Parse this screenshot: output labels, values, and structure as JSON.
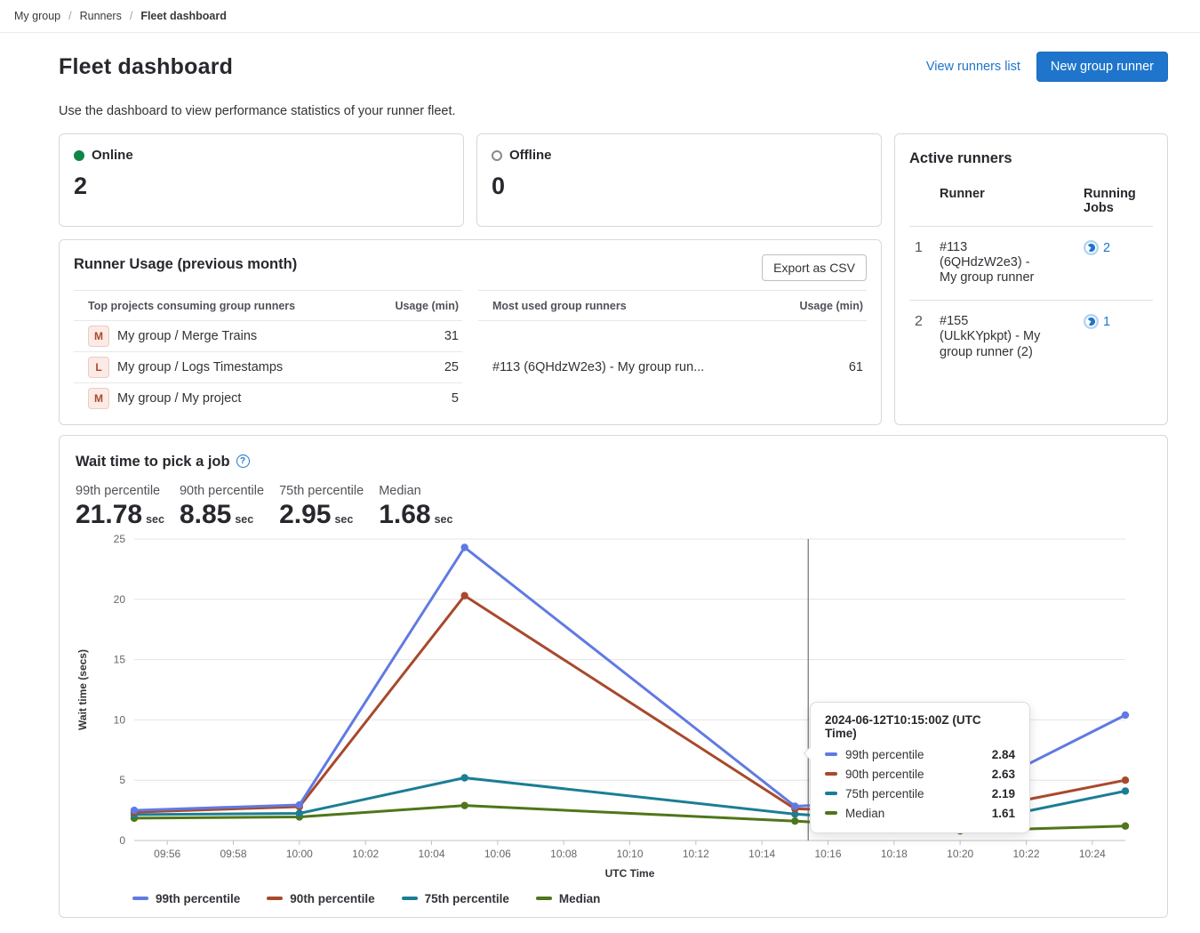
{
  "colors": {
    "link": "#1f75cb",
    "primary_button": "#1f75cb",
    "online": "#108548",
    "offline_ring": "#89888d",
    "grid_line": "#e4e4e7",
    "axis_line": "#c2c1c6",
    "axis_pointer": "#55545a"
  },
  "breadcrumb": {
    "items": [
      {
        "label": "My group"
      },
      {
        "label": "Runners"
      },
      {
        "label": "Fleet dashboard"
      }
    ]
  },
  "header": {
    "title": "Fleet dashboard",
    "view_runners_link": "View runners list",
    "new_runner_button": "New group runner",
    "subtitle": "Use the dashboard to view performance statistics of your runner fleet."
  },
  "status_cards": {
    "online": {
      "label": "Online",
      "value": "2"
    },
    "offline": {
      "label": "Offline",
      "value": "0"
    }
  },
  "active_runners": {
    "title": "Active runners",
    "columns": {
      "runner": "Runner",
      "jobs": "Running Jobs"
    },
    "rows": [
      {
        "index": "1",
        "name": "#113 (6QHdzW2e3) - My group runner",
        "jobs": "2"
      },
      {
        "index": "2",
        "name": "#155 (ULkKYpkpt) - My group runner (2)",
        "jobs": "1"
      }
    ]
  },
  "runner_usage": {
    "title": "Runner Usage (previous month)",
    "export_button": "Export as CSV",
    "top_projects": {
      "col_name": "Top projects consuming group runners",
      "col_usage": "Usage (min)",
      "rows": [
        {
          "avatar": "M",
          "name": "My group / Merge Trains",
          "usage": "31"
        },
        {
          "avatar": "L",
          "name": "My group / Logs Timestamps",
          "usage": "25"
        },
        {
          "avatar": "M",
          "name": "My group / My project",
          "usage": "5"
        }
      ]
    },
    "most_used": {
      "col_name": "Most used group runners",
      "col_usage": "Usage (min)",
      "rows": [
        {
          "name": "#113 (6QHdzW2e3) - My group run...",
          "usage": "61"
        }
      ]
    }
  },
  "wait_chart": {
    "title": "Wait time to pick a job",
    "stats": [
      {
        "label": "99th percentile",
        "value": "21.78",
        "unit": "sec"
      },
      {
        "label": "90th percentile",
        "value": "8.85",
        "unit": "sec"
      },
      {
        "label": "75th percentile",
        "value": "2.95",
        "unit": "sec"
      },
      {
        "label": "Median",
        "value": "1.68",
        "unit": "sec"
      }
    ],
    "chart_data": {
      "type": "line",
      "title": "Wait time to pick a job",
      "xlabel": "UTC Time",
      "ylabel": "Wait time (secs)",
      "ylim": [
        0,
        25
      ],
      "y_ticks": [
        0,
        5,
        10,
        15,
        20,
        25
      ],
      "x_times": [
        "09:55",
        "10:00",
        "10:05",
        "10:15",
        "10:20",
        "10:25"
      ],
      "x_minutes": [
        0,
        5,
        10,
        20,
        25,
        30
      ],
      "x_range_minutes": 30,
      "x_tick_labels": [
        "09:56",
        "09:58",
        "10:00",
        "10:02",
        "10:04",
        "10:06",
        "10:08",
        "10:10",
        "10:12",
        "10:14",
        "10:16",
        "10:18",
        "10:20",
        "10:22",
        "10:24"
      ],
      "grid": "horizontal",
      "legend_position": "bottom",
      "series": [
        {
          "name": "99th percentile",
          "color": "#617ae2",
          "values": [
            2.5,
            2.95,
            24.3,
            2.84,
            3.5,
            10.4
          ]
        },
        {
          "name": "90th percentile",
          "color": "#a8492c",
          "values": [
            2.35,
            2.8,
            20.3,
            2.63,
            2.3,
            5.0
          ]
        },
        {
          "name": "75th percentile",
          "color": "#1b7e94",
          "values": [
            2.15,
            2.25,
            5.2,
            2.19,
            1.3,
            4.1
          ]
        },
        {
          "name": "Median",
          "color": "#4f7619",
          "values": [
            1.85,
            1.95,
            2.9,
            1.61,
            0.8,
            1.2
          ]
        }
      ],
      "axis_pointer_minute": 20.4,
      "tooltip": {
        "title": "2024-06-12T10:15:00Z (UTC Time)",
        "rows": [
          {
            "name": "99th percentile",
            "value": "2.84"
          },
          {
            "name": "90th percentile",
            "value": "2.63"
          },
          {
            "name": "75th percentile",
            "value": "2.19"
          },
          {
            "name": "Median",
            "value": "1.61"
          }
        ]
      }
    }
  }
}
